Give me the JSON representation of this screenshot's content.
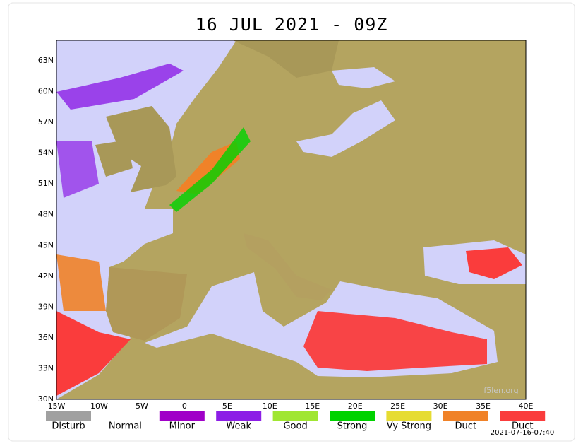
{
  "title": "16 JUL 2021 - 09Z",
  "latitude_labels": [
    "63N",
    "60N",
    "57N",
    "54N",
    "51N",
    "48N",
    "45N",
    "42N",
    "39N",
    "36N",
    "33N",
    "30N"
  ],
  "longitude_labels": [
    "15W",
    "10W",
    "5W",
    "0",
    "5E",
    "10E",
    "15E",
    "20E",
    "25E",
    "30E",
    "35E",
    "40E"
  ],
  "legend": [
    {
      "label": "Disturb",
      "color": "#a0a0a0"
    },
    {
      "label": "Normal"
    },
    {
      "label": "Minor",
      "color": "#a000c8"
    },
    {
      "label": "Weak",
      "color": "#8c1ee6"
    },
    {
      "label": "Good",
      "color": "#a0e632"
    },
    {
      "label": "Strong",
      "color": "#00d200"
    },
    {
      "label": "Vy Strong",
      "color": "#e6dc32"
    },
    {
      "label": "Duct",
      "color": "#f08228"
    },
    {
      "label": "Duct",
      "color": "#fa3c3c"
    }
  ],
  "watermark": "f5len.org",
  "timestamp": "2021-07-16-07:40"
}
